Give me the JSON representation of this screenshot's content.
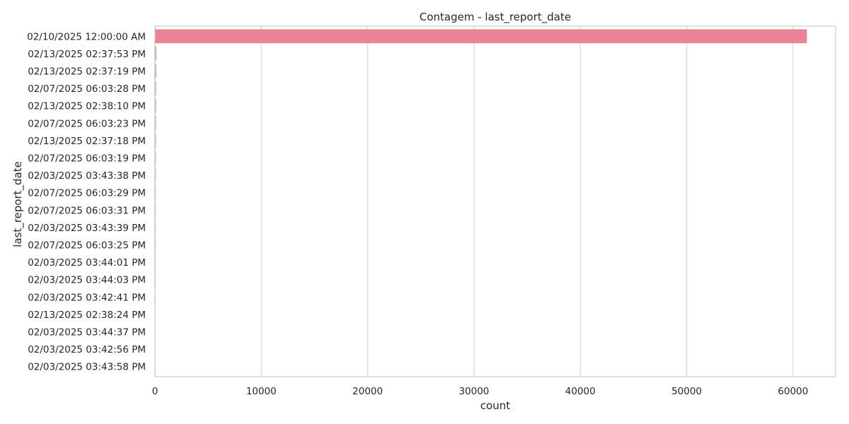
{
  "chart_data": {
    "type": "bar",
    "orientation": "horizontal",
    "title": "Contagem - last_report_date",
    "xlabel": "count",
    "ylabel": "last_report_date",
    "xlim": [
      0,
      64000
    ],
    "xticks": [
      0,
      10000,
      20000,
      30000,
      40000,
      50000,
      60000
    ],
    "grid": "vertical",
    "categories": [
      "02/10/2025 12:00:00 AM",
      "02/13/2025 02:37:53 PM",
      "02/13/2025 02:37:19 PM",
      "02/07/2025 06:03:28 PM",
      "02/13/2025 02:38:10 PM",
      "02/07/2025 06:03:23 PM",
      "02/13/2025 02:37:18 PM",
      "02/07/2025 06:03:19 PM",
      "02/03/2025 03:43:38 PM",
      "02/07/2025 06:03:29 PM",
      "02/07/2025 06:03:31 PM",
      "02/03/2025 03:43:39 PM",
      "02/07/2025 06:03:25 PM",
      "02/03/2025 03:44:01 PM",
      "02/03/2025 03:44:03 PM",
      "02/03/2025 03:42:41 PM",
      "02/13/2025 02:38:24 PM",
      "02/03/2025 03:44:37 PM",
      "02/03/2025 03:42:56 PM",
      "02/03/2025 03:43:58 PM"
    ],
    "values": [
      61300,
      120,
      110,
      100,
      95,
      90,
      85,
      80,
      75,
      70,
      65,
      60,
      55,
      50,
      45,
      40,
      38,
      36,
      34,
      32
    ],
    "bar_color": "#e98496",
    "grid_color": "#dddddd",
    "spine_color": "#cccccc"
  }
}
